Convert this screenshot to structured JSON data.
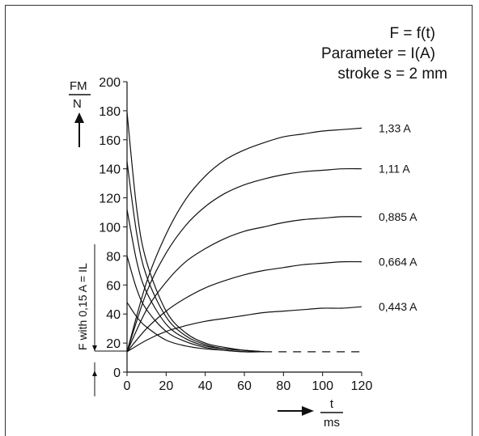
{
  "chart_data": {
    "type": "line",
    "annotations": [
      "F = f(t)",
      "Parameter = I(A)",
      "stroke s = 2 mm"
    ],
    "ylabel_num": "FM",
    "ylabel_den": "N",
    "xlabel_num": "t",
    "xlabel_den": "ms",
    "side_label": "F with 0,15 A = IL",
    "xlim": [
      0,
      120
    ],
    "ylim": [
      0,
      200
    ],
    "xticks": [
      "0",
      "20",
      "40",
      "60",
      "80",
      "100",
      "120"
    ],
    "yticks": [
      "0",
      "20",
      "40",
      "60",
      "80",
      "100",
      "120",
      "140",
      "160",
      "180",
      "200"
    ],
    "baseline_force": 14,
    "rising_series": [
      {
        "name": "1,33 A",
        "x": [
          0,
          10,
          20,
          30,
          40,
          50,
          60,
          70,
          80,
          90,
          100,
          110,
          120
        ],
        "y": [
          14,
          62,
          95,
          119,
          135,
          146,
          153,
          158,
          162,
          164,
          166,
          167,
          168
        ]
      },
      {
        "name": "1,11 A",
        "x": [
          0,
          10,
          20,
          30,
          40,
          50,
          60,
          70,
          80,
          90,
          100,
          110,
          120
        ],
        "y": [
          14,
          55,
          82,
          101,
          114,
          123,
          129,
          133,
          136,
          138,
          139,
          140,
          140
        ]
      },
      {
        "name": "0,885 A",
        "x": [
          0,
          10,
          20,
          30,
          40,
          50,
          60,
          70,
          80,
          90,
          100,
          110,
          120
        ],
        "y": [
          14,
          43,
          62,
          76,
          85,
          92,
          97,
          100,
          103,
          105,
          106,
          107,
          107
        ]
      },
      {
        "name": "0,664 A",
        "x": [
          0,
          10,
          20,
          30,
          40,
          50,
          60,
          70,
          80,
          90,
          100,
          110,
          120
        ],
        "y": [
          14,
          30,
          42,
          51,
          58,
          63,
          67,
          70,
          72,
          74,
          75,
          76,
          76
        ]
      },
      {
        "name": "0,443 A",
        "x": [
          0,
          10,
          20,
          30,
          40,
          50,
          60,
          70,
          80,
          90,
          100,
          110,
          120
        ],
        "y": [
          14,
          22,
          28,
          32,
          35,
          37,
          39,
          41,
          42,
          43,
          44,
          44,
          45
        ]
      }
    ],
    "falling_series": [
      {
        "x": [
          0,
          5,
          10,
          20,
          30,
          40,
          50,
          60,
          70
        ],
        "y": [
          179,
          112,
          76,
          42,
          27,
          20,
          17,
          15,
          14
        ]
      },
      {
        "x": [
          0,
          5,
          10,
          20,
          30,
          40,
          50,
          60,
          70
        ],
        "y": [
          145,
          95,
          66,
          38,
          25,
          19,
          16,
          15,
          14
        ]
      },
      {
        "x": [
          0,
          5,
          10,
          20,
          30,
          40,
          50,
          60,
          70
        ],
        "y": [
          112,
          76,
          55,
          33,
          23,
          18,
          16,
          15,
          14
        ]
      },
      {
        "x": [
          0,
          5,
          10,
          20,
          30,
          40,
          50,
          60,
          70
        ],
        "y": [
          80,
          57,
          43,
          28,
          21,
          17,
          15,
          14,
          14
        ]
      },
      {
        "x": [
          0,
          5,
          10,
          20,
          30,
          40,
          50,
          60,
          70
        ],
        "y": [
          48,
          38,
          31,
          22,
          18,
          16,
          15,
          14,
          14
        ]
      }
    ],
    "dashed_from_x": 70,
    "grid": false
  }
}
